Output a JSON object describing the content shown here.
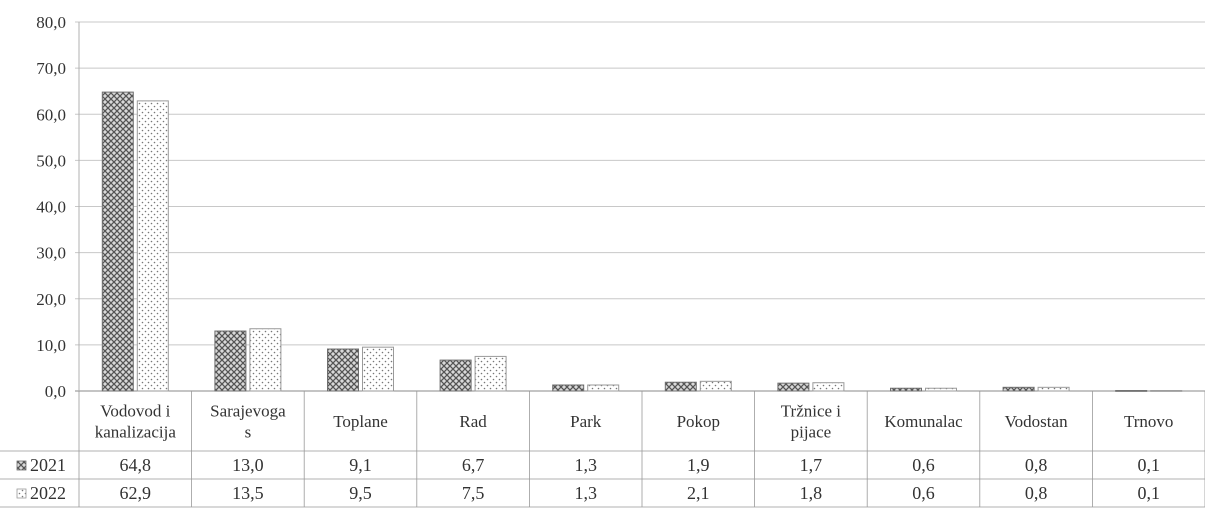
{
  "chart_data": {
    "type": "bar",
    "categories": [
      [
        "Vodovod i",
        "kanalizacija"
      ],
      [
        "Sarajevoga",
        "s"
      ],
      [
        "Toplane"
      ],
      [
        "Rad"
      ],
      [
        "Park"
      ],
      [
        "Pokop"
      ],
      [
        "Tržnice i",
        "pijace"
      ],
      [
        "Komunalac"
      ],
      [
        "Vodostan"
      ],
      [
        "Trnovo"
      ]
    ],
    "series": [
      {
        "name": "2021",
        "values": [
          64.8,
          13.0,
          9.1,
          6.7,
          1.3,
          1.9,
          1.7,
          0.6,
          0.8,
          0.1
        ],
        "labels": [
          "64,8",
          "13,0",
          "9,1",
          "6,7",
          "1,3",
          "1,9",
          "1,7",
          "0,6",
          "0,8",
          "0,1"
        ],
        "pattern": "crosshatch",
        "color": "#6e6e6e"
      },
      {
        "name": "2022",
        "values": [
          62.9,
          13.5,
          9.5,
          7.5,
          1.3,
          2.1,
          1.8,
          0.6,
          0.8,
          0.1
        ],
        "labels": [
          "62,9",
          "13,5",
          "9,5",
          "7,5",
          "1,3",
          "2,1",
          "1,8",
          "0,6",
          "0,8",
          "0,1"
        ],
        "pattern": "dotted",
        "color": "#9a9a9a"
      }
    ],
    "y_ticks": [
      "0,0",
      "10,0",
      "20,0",
      "30,0",
      "40,0",
      "50,0",
      "60,0",
      "70,0",
      "80,0"
    ],
    "ylim": [
      0,
      80
    ],
    "grid": true,
    "legend": "data-table"
  }
}
